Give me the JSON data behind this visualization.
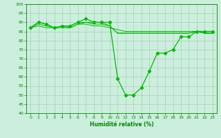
{
  "title": "",
  "xlabel": "Humidité relative (%)",
  "ylabel": "",
  "bg_color": "#cceedd",
  "grid_color": "#aaccbb",
  "line_color": "#00bb00",
  "spine_color": "#008800",
  "xlim": [
    -0.5,
    23.5
  ],
  "ylim": [
    40,
    100
  ],
  "yticks": [
    40,
    45,
    50,
    55,
    60,
    65,
    70,
    75,
    80,
    85,
    90,
    95,
    100
  ],
  "xticks": [
    0,
    1,
    2,
    3,
    4,
    5,
    6,
    7,
    8,
    9,
    10,
    11,
    12,
    13,
    14,
    15,
    16,
    17,
    18,
    19,
    20,
    21,
    22,
    23
  ],
  "series": [
    [
      87,
      90,
      89,
      87,
      88,
      88,
      90,
      92,
      90,
      90,
      90,
      59,
      50,
      50,
      54,
      63,
      73,
      73,
      75,
      82,
      82,
      85,
      85,
      85
    ],
    [
      87,
      90,
      89,
      87,
      88,
      88,
      90,
      90,
      90,
      90,
      88,
      84,
      84,
      84,
      84,
      84,
      84,
      84,
      84,
      84,
      84,
      85,
      84,
      84
    ],
    [
      87,
      88,
      87,
      87,
      88,
      87,
      89,
      90,
      89,
      89,
      88,
      84,
      84,
      84,
      84,
      84,
      84,
      84,
      84,
      84,
      84,
      85,
      84,
      84
    ],
    [
      87,
      89,
      88,
      87,
      87,
      87,
      89,
      89,
      88,
      88,
      87,
      86,
      85,
      85,
      85,
      85,
      85,
      85,
      85,
      85,
      85,
      85,
      84,
      84
    ]
  ],
  "marker": "D",
  "markersize": 2.2,
  "linewidth": 0.9,
  "xlabel_fontsize": 5.5,
  "tick_fontsize": 4.5
}
